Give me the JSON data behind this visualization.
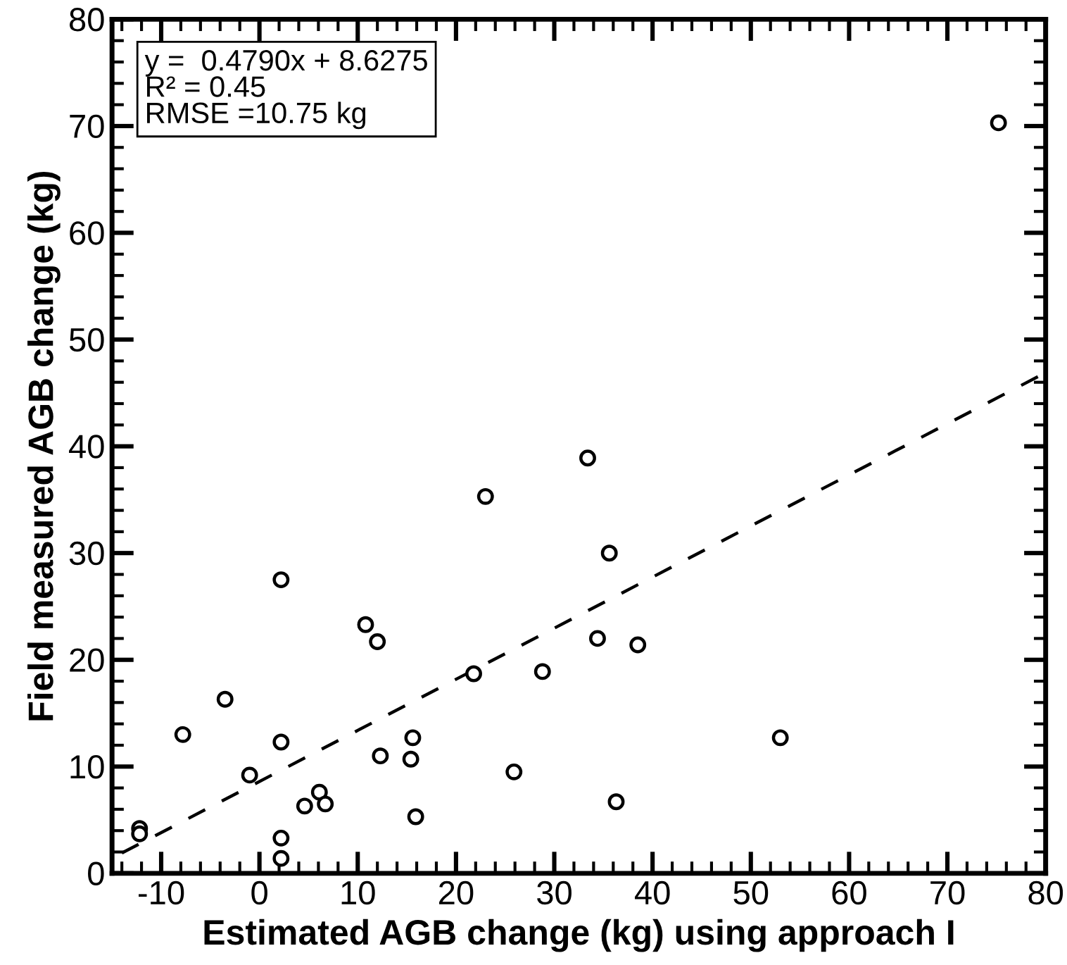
{
  "chart_data": {
    "type": "scatter",
    "xlabel": "Estimated AGB change (kg) using approach I",
    "ylabel": "Field measured AGB change (kg)",
    "annotations": [
      "y =  0.4790x + 8.6275\nR² = 0.45\nRMSE =10.75 kg"
    ],
    "series": [
      {
        "color": "#000000",
        "marker": "circle",
        "x": [
          -12.2,
          -12.2,
          -7.8,
          -3.5,
          -1,
          2.2,
          2.2,
          2.2,
          2.2,
          4.6,
          6.1,
          6.7,
          10.8,
          12,
          12.3,
          15.6,
          15.4,
          15.9,
          21.8,
          23,
          25.9,
          28.8,
          33.4,
          34.4,
          35.6,
          36.3,
          38.5,
          53,
          75.2
        ],
        "values": [
          4.2,
          3.7,
          13.0,
          16.3,
          9.2,
          27.5,
          12.3,
          3.3,
          1.4,
          6.3,
          7.6,
          6.5,
          23.3,
          21.7,
          11.0,
          12.7,
          10.7,
          5.3,
          18.7,
          35.3,
          9.5,
          18.9,
          38.9,
          22.0,
          30.0,
          6.7,
          21.4,
          12.7,
          70.3
        ]
      },
      {
        "type": "line",
        "color": "#000000",
        "line_style": "dashed",
        "marker": "none",
        "x": [
          -14,
          80
        ],
        "values": [
          1.9,
          46.9
        ]
      }
    ],
    "xlim": [
      -15,
      80
    ],
    "ylim": [
      0,
      80
    ],
    "xticks": [
      -10,
      0,
      10,
      20,
      30,
      40,
      50,
      60,
      70,
      80
    ],
    "yticks": [
      0,
      10,
      20,
      30,
      40,
      50,
      60,
      70,
      80
    ],
    "grid": false,
    "legend": false
  }
}
